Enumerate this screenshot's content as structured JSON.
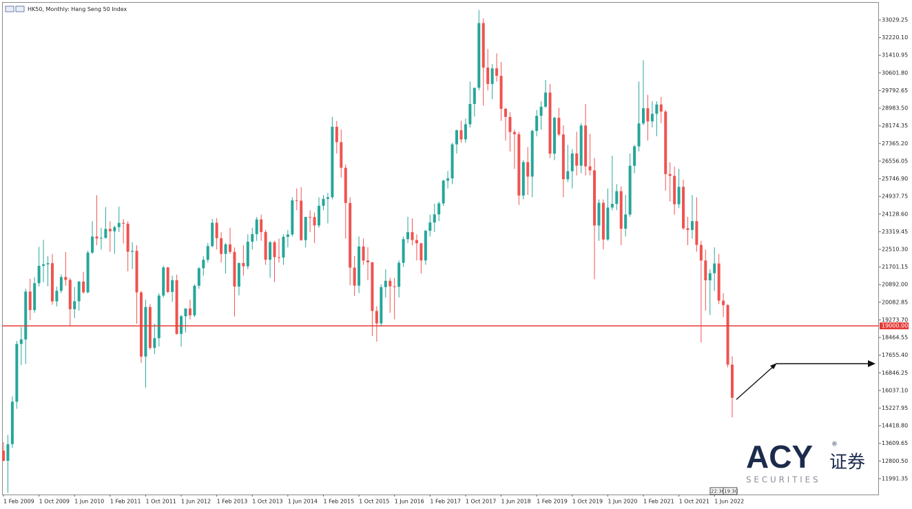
{
  "chart_data": {
    "type": "candlestick",
    "title": "HK50, Monthly:  Hang Seng 50 Index",
    "up_color": "#26a69a",
    "down_color": "#ef5350",
    "x": [
      "2009-02-01",
      "2009-03-01",
      "2009-04-01",
      "2009-05-01",
      "2009-06-01",
      "2009-07-01",
      "2009-08-01",
      "2009-09-01",
      "2009-10-01",
      "2009-11-01",
      "2009-12-01",
      "2010-01-01",
      "2010-02-01",
      "2010-03-01",
      "2010-04-01",
      "2010-05-01",
      "2010-06-01",
      "2010-07-01",
      "2010-08-01",
      "2010-09-01",
      "2010-10-01",
      "2010-11-01",
      "2010-12-01",
      "2011-01-01",
      "2011-02-01",
      "2011-03-01",
      "2011-04-01",
      "2011-05-01",
      "2011-06-01",
      "2011-07-01",
      "2011-08-01",
      "2011-09-01",
      "2011-10-01",
      "2011-11-01",
      "2011-12-01",
      "2012-01-01",
      "2012-02-01",
      "2012-03-01",
      "2012-04-01",
      "2012-05-01",
      "2012-06-01",
      "2012-07-01",
      "2012-08-01",
      "2012-09-01",
      "2012-10-01",
      "2012-11-01",
      "2012-12-01",
      "2013-01-01",
      "2013-02-01",
      "2013-03-01",
      "2013-04-01",
      "2013-05-01",
      "2013-06-01",
      "2013-07-01",
      "2013-08-01",
      "2013-09-01",
      "2013-10-01",
      "2013-11-01",
      "2013-12-01",
      "2014-01-01",
      "2014-02-01",
      "2014-03-01",
      "2014-04-01",
      "2014-05-01",
      "2014-06-01",
      "2014-07-01",
      "2014-08-01",
      "2014-09-01",
      "2014-10-01",
      "2014-11-01",
      "2014-12-01",
      "2015-01-01",
      "2015-02-01",
      "2015-03-01",
      "2015-04-01",
      "2015-05-01",
      "2015-06-01",
      "2015-07-01",
      "2015-08-01",
      "2015-09-01",
      "2015-10-01",
      "2015-11-01",
      "2015-12-01",
      "2016-01-01",
      "2016-02-01",
      "2016-03-01",
      "2016-04-01",
      "2016-05-01",
      "2016-06-01",
      "2016-07-01",
      "2016-08-01",
      "2016-09-01",
      "2016-10-01",
      "2016-11-01",
      "2016-12-01",
      "2017-01-01",
      "2017-02-01",
      "2017-03-01",
      "2017-04-01",
      "2017-05-01",
      "2017-06-01",
      "2017-07-01",
      "2017-08-01",
      "2017-09-01",
      "2017-10-01",
      "2017-11-01",
      "2017-12-01",
      "2018-01-01",
      "2018-02-01",
      "2018-03-01",
      "2018-04-01",
      "2018-05-01",
      "2018-06-01",
      "2018-07-01",
      "2018-08-01",
      "2018-09-01",
      "2018-10-01",
      "2018-11-01",
      "2018-12-01",
      "2019-01-01",
      "2019-02-01",
      "2019-03-01",
      "2019-04-01",
      "2019-05-01",
      "2019-06-01",
      "2019-07-01",
      "2019-08-01",
      "2019-09-01",
      "2019-10-01",
      "2019-11-01",
      "2019-12-01",
      "2020-01-01",
      "2020-02-01",
      "2020-03-01",
      "2020-04-01",
      "2020-05-01",
      "2020-06-01",
      "2020-07-01",
      "2020-08-01",
      "2020-09-01",
      "2020-10-01",
      "2020-11-01",
      "2020-12-01",
      "2021-01-01",
      "2021-02-01",
      "2021-03-01",
      "2021-04-01",
      "2021-05-01",
      "2021-06-01",
      "2021-07-01",
      "2021-08-01",
      "2021-09-01",
      "2021-10-01",
      "2021-11-01",
      "2021-12-01",
      "2022-01-01",
      "2022-02-01",
      "2022-03-01",
      "2022-04-01",
      "2022-05-01",
      "2022-06-01",
      "2022-07-01",
      "2022-08-01",
      "2022-09-01",
      "2022-10-01"
    ],
    "open": [
      13278,
      12812,
      13576,
      15521,
      18171,
      18379,
      20573,
      19724,
      20955,
      21753,
      21822,
      21873,
      20122,
      20609,
      21239,
      21108,
      19765,
      20129,
      21030,
      20537,
      22359,
      23096,
      23008,
      23035,
      23447,
      23338,
      23528,
      23720,
      23684,
      22398,
      22440,
      20535,
      17592,
      19864,
      17989,
      18434,
      20390,
      21680,
      20556,
      21094,
      18630,
      19441,
      19797,
      19483,
      20840,
      21642,
      22030,
      22657,
      23730,
      23020,
      22300,
      22737,
      22392,
      20803,
      21883,
      21731,
      22860,
      23206,
      23881,
      23306,
      22035,
      22837,
      22151,
      22134,
      23082,
      23191,
      24757,
      24742,
      22933,
      23998,
      23987,
      23605,
      24507,
      24823,
      24901,
      28133,
      27424,
      26250,
      24636,
      21671,
      20846,
      22640,
      21996,
      21914,
      19683,
      19112,
      20777,
      21067,
      20815,
      20794,
      21891,
      22977,
      23297,
      22935,
      22790,
      22001,
      23361,
      23741,
      24112,
      24615,
      25661,
      25765,
      27324,
      27970,
      27554,
      28246,
      29177,
      29919,
      32887,
      30845,
      30093,
      30808,
      30469,
      28955,
      28583,
      27889,
      27789,
      24980,
      26507,
      25846,
      27942,
      28633,
      29051,
      29699,
      26901,
      28543,
      27778,
      25725,
      26092,
      26907,
      26346,
      28190,
      26313,
      26130,
      23603,
      24644,
      22961,
      24427,
      24595,
      25177,
      23459,
      24107,
      26341,
      27231,
      28284,
      28980,
      28378,
      28725,
      29152,
      28828,
      25961,
      25879,
      24576,
      25377,
      23475,
      23398,
      23802,
      22713,
      21997,
      21089,
      21415,
      21860,
      20157,
      19954,
      17223
    ],
    "high": [
      13661,
      13993,
      15768,
      18309,
      18947,
      20700,
      21157,
      21229,
      22620,
      22943,
      22200,
      22300,
      20802,
      21361,
      22388,
      21200,
      20781,
      21060,
      21481,
      22443,
      23800,
      24989,
      23500,
      24450,
      23800,
      23600,
      24468,
      23900,
      23800,
      22835,
      22700,
      20600,
      20200,
      20000,
      19100,
      20500,
      21760,
      21700,
      21300,
      21350,
      19500,
      19800,
      20200,
      20900,
      21700,
      22200,
      22800,
      23900,
      23944,
      23300,
      22800,
      23500,
      22600,
      21900,
      22700,
      23200,
      23500,
      24000,
      24100,
      23400,
      22900,
      22900,
      23000,
      23200,
      23400,
      24900,
      25300,
      25363,
      24000,
      24300,
      24200,
      24900,
      25000,
      25100,
      28588,
      28400,
      28000,
      26400,
      24900,
      22200,
      23100,
      23000,
      22600,
      21930,
      19900,
      20900,
      21600,
      21200,
      21200,
      22000,
      23100,
      24000,
      23934,
      23200,
      22800,
      23400,
      24100,
      24600,
      24700,
      25700,
      26100,
      27400,
      28000,
      28400,
      28500,
      30200,
      29900,
      33484,
      33100,
      31700,
      31000,
      31500,
      31100,
      29000,
      28800,
      28000,
      27900,
      26600,
      27200,
      28000,
      28900,
      29300,
      30280,
      30100,
      28600,
      29000,
      28200,
      27300,
      27100,
      27900,
      28300,
      29175,
      27800,
      26700,
      24800,
      24800,
      25300,
      26800,
      25500,
      25400,
      25000,
      26900,
      27300,
      30200,
      31183,
      29600,
      29300,
      29300,
      29500,
      28900,
      26500,
      26300,
      26200,
      25700,
      24000,
      25000,
      24900,
      22900,
      22500,
      21600,
      22600,
      22300,
      20500,
      20000,
      17600
    ],
    "low": [
      12783,
      11344,
      13400,
      15200,
      17200,
      17250,
      19258,
      19600,
      20800,
      21000,
      20814,
      19967,
      19894,
      20500,
      20840,
      18971,
      19357,
      19700,
      20470,
      20500,
      22300,
      22700,
      22500,
      23000,
      22400,
      22300,
      23300,
      22780,
      21500,
      21600,
      19100,
      17300,
      16170,
      17900,
      17700,
      18050,
      20300,
      20500,
      20100,
      18600,
      18056,
      18700,
      19300,
      19400,
      20700,
      21300,
      21900,
      22600,
      22500,
      21900,
      21400,
      22300,
      19426,
      20400,
      21300,
      21600,
      22500,
      22900,
      22900,
      21800,
      21200,
      21000,
      21900,
      21800,
      22600,
      23100,
      24300,
      22900,
      22600,
      23300,
      22800,
      23500,
      24300,
      23700,
      24800,
      26900,
      25800,
      23000,
      20865,
      20368,
      20500,
      21800,
      21100,
      18534,
      18278,
      19000,
      20300,
      19600,
      19300,
      20300,
      21700,
      22800,
      22700,
      22000,
      21400,
      21800,
      23100,
      23300,
      23800,
      24500,
      25300,
      25500,
      26900,
      27400,
      27400,
      28100,
      28600,
      29800,
      29100,
      29800,
      29400,
      30200,
      28400,
      27500,
      27000,
      26200,
      24540,
      24800,
      25000,
      24900,
      27700,
      28000,
      29000,
      26700,
      26600,
      27700,
      24900,
      25600,
      25300,
      25900,
      26000,
      25900,
      25900,
      21139,
      22900,
      22500,
      22900,
      24300,
      24300,
      22700,
      23100,
      24000,
      26000,
      27000,
      28200,
      27500,
      28100,
      27700,
      28300,
      25200,
      24700,
      24100,
      24400,
      23400,
      22700,
      23000,
      22400,
      18235,
      19700,
      19500,
      20600,
      20000,
      19400,
      17100,
      14800
    ],
    "close": [
      12812,
      13576,
      15521,
      18171,
      18379,
      20573,
      19724,
      20955,
      21753,
      21822,
      21873,
      20122,
      20609,
      21239,
      21108,
      19765,
      20129,
      21030,
      20537,
      22359,
      23096,
      23008,
      23035,
      23447,
      23338,
      23528,
      23720,
      23684,
      22398,
      22440,
      20535,
      17592,
      19864,
      17989,
      18434,
      20390,
      21680,
      20556,
      21094,
      18630,
      19441,
      19797,
      19483,
      20840,
      21642,
      22030,
      22657,
      23730,
      23020,
      22300,
      22737,
      22392,
      20803,
      21883,
      21731,
      22860,
      23206,
      23881,
      23306,
      22035,
      22837,
      22151,
      22134,
      23082,
      23191,
      24757,
      24742,
      22933,
      23998,
      23987,
      23605,
      24507,
      24823,
      24901,
      28133,
      27424,
      26250,
      24636,
      21671,
      20846,
      22640,
      21996,
      21914,
      19683,
      19112,
      20777,
      21067,
      20815,
      20794,
      21891,
      22977,
      23297,
      22935,
      22790,
      22001,
      23361,
      23741,
      24112,
      24615,
      25661,
      25765,
      27324,
      27970,
      27554,
      28246,
      29177,
      29919,
      32887,
      30845,
      30093,
      30808,
      30469,
      28955,
      28583,
      27889,
      27789,
      24980,
      26507,
      25846,
      27942,
      28633,
      29051,
      29699,
      26901,
      28543,
      27778,
      25725,
      26092,
      26907,
      26346,
      28190,
      26313,
      26130,
      23603,
      24644,
      22961,
      24427,
      24595,
      25177,
      23459,
      24107,
      26341,
      27231,
      28284,
      28980,
      28378,
      28725,
      29152,
      28828,
      25961,
      25879,
      24576,
      25377,
      23475,
      23398,
      23802,
      22713,
      21997,
      21089,
      21415,
      21860,
      20157,
      19954,
      17223,
      15700
    ],
    "ylim": [
      11264,
      33945
    ],
    "yticks": [
      11991.35,
      {
        "value": 12800.5,
        "label": "12800.50"
      },
      13609.65,
      {
        "value": 14418.8,
        "label": "14418.80"
      },
      15227.95,
      {
        "value": 16037.1,
        "label": "16037.10"
      },
      16846.25,
      {
        "value": 17655.4,
        "label": "17655.40"
      },
      18464.55,
      {
        "value": 19273.7,
        "label": "19273.70"
      },
      20082.85,
      {
        "value": 20892,
        "label": "20892.00"
      },
      21701.15,
      {
        "value": 22510.3,
        "label": "22510.30"
      },
      23319.45,
      {
        "value": 24128.6,
        "label": "24128.60"
      },
      24937.75,
      {
        "value": 25746.9,
        "label": "25746.90"
      },
      26556.05,
      {
        "value": 27365.2,
        "label": "27365.20"
      },
      28174.35,
      {
        "value": 28983.5,
        "label": "28983.50"
      },
      29792.65,
      {
        "value": 30601.8,
        "label": "30601.80"
      },
      31410.95,
      {
        "value": 32220.1,
        "label": "32220.10"
      },
      33029.25
    ],
    "xticks": [
      {
        "value": "2009-02-01",
        "label": "1 Feb 2009"
      },
      {
        "value": "2009-10-01",
        "label": "1 Oct 2009"
      },
      {
        "value": "2010-06-01",
        "label": "1 Jun 2010"
      },
      {
        "value": "2011-02-01",
        "label": "1 Feb 2011"
      },
      {
        "value": "2011-10-01",
        "label": "1 Oct 2011"
      },
      {
        "value": "2012-06-01",
        "label": "1 Jun 2012"
      },
      {
        "value": "2013-02-01",
        "label": "1 Feb 2013"
      },
      {
        "value": "2013-10-01",
        "label": "1 Oct 2013"
      },
      {
        "value": "2014-06-01",
        "label": "1 Jun 2014"
      },
      {
        "value": "2015-02-01",
        "label": "1 Feb 2015"
      },
      {
        "value": "2015-10-01",
        "label": "1 Oct 2015"
      },
      {
        "value": "2016-06-01",
        "label": "1 Jun 2016"
      },
      {
        "value": "2017-02-01",
        "label": "1 Feb 2017"
      },
      {
        "value": "2017-10-01",
        "label": "1 Oct 2017"
      },
      {
        "value": "2018-06-01",
        "label": "1 Jun 2018"
      },
      {
        "value": "2019-02-01",
        "label": "1 Feb 2019"
      },
      {
        "value": "2019-10-01",
        "label": "1 Oct 2019"
      },
      {
        "value": "2020-06-01",
        "label": "1 Jun 2020"
      },
      {
        "value": "2021-02-01",
        "label": "1 Feb 2021"
      },
      {
        "value": "2021-10-01",
        "label": "1 Oct 2021"
      },
      {
        "value": "2022-06-01",
        "label": "1 Jun 2022"
      }
    ],
    "hline": {
      "value": 19000,
      "label": "19000.00",
      "color": "#e53935"
    },
    "time_labels": [
      "22:30",
      "19:30"
    ]
  },
  "logo": {
    "brand": "ACY",
    "registered": "®",
    "chinese": "证券",
    "tagline": "S E C U R I T I E S"
  }
}
